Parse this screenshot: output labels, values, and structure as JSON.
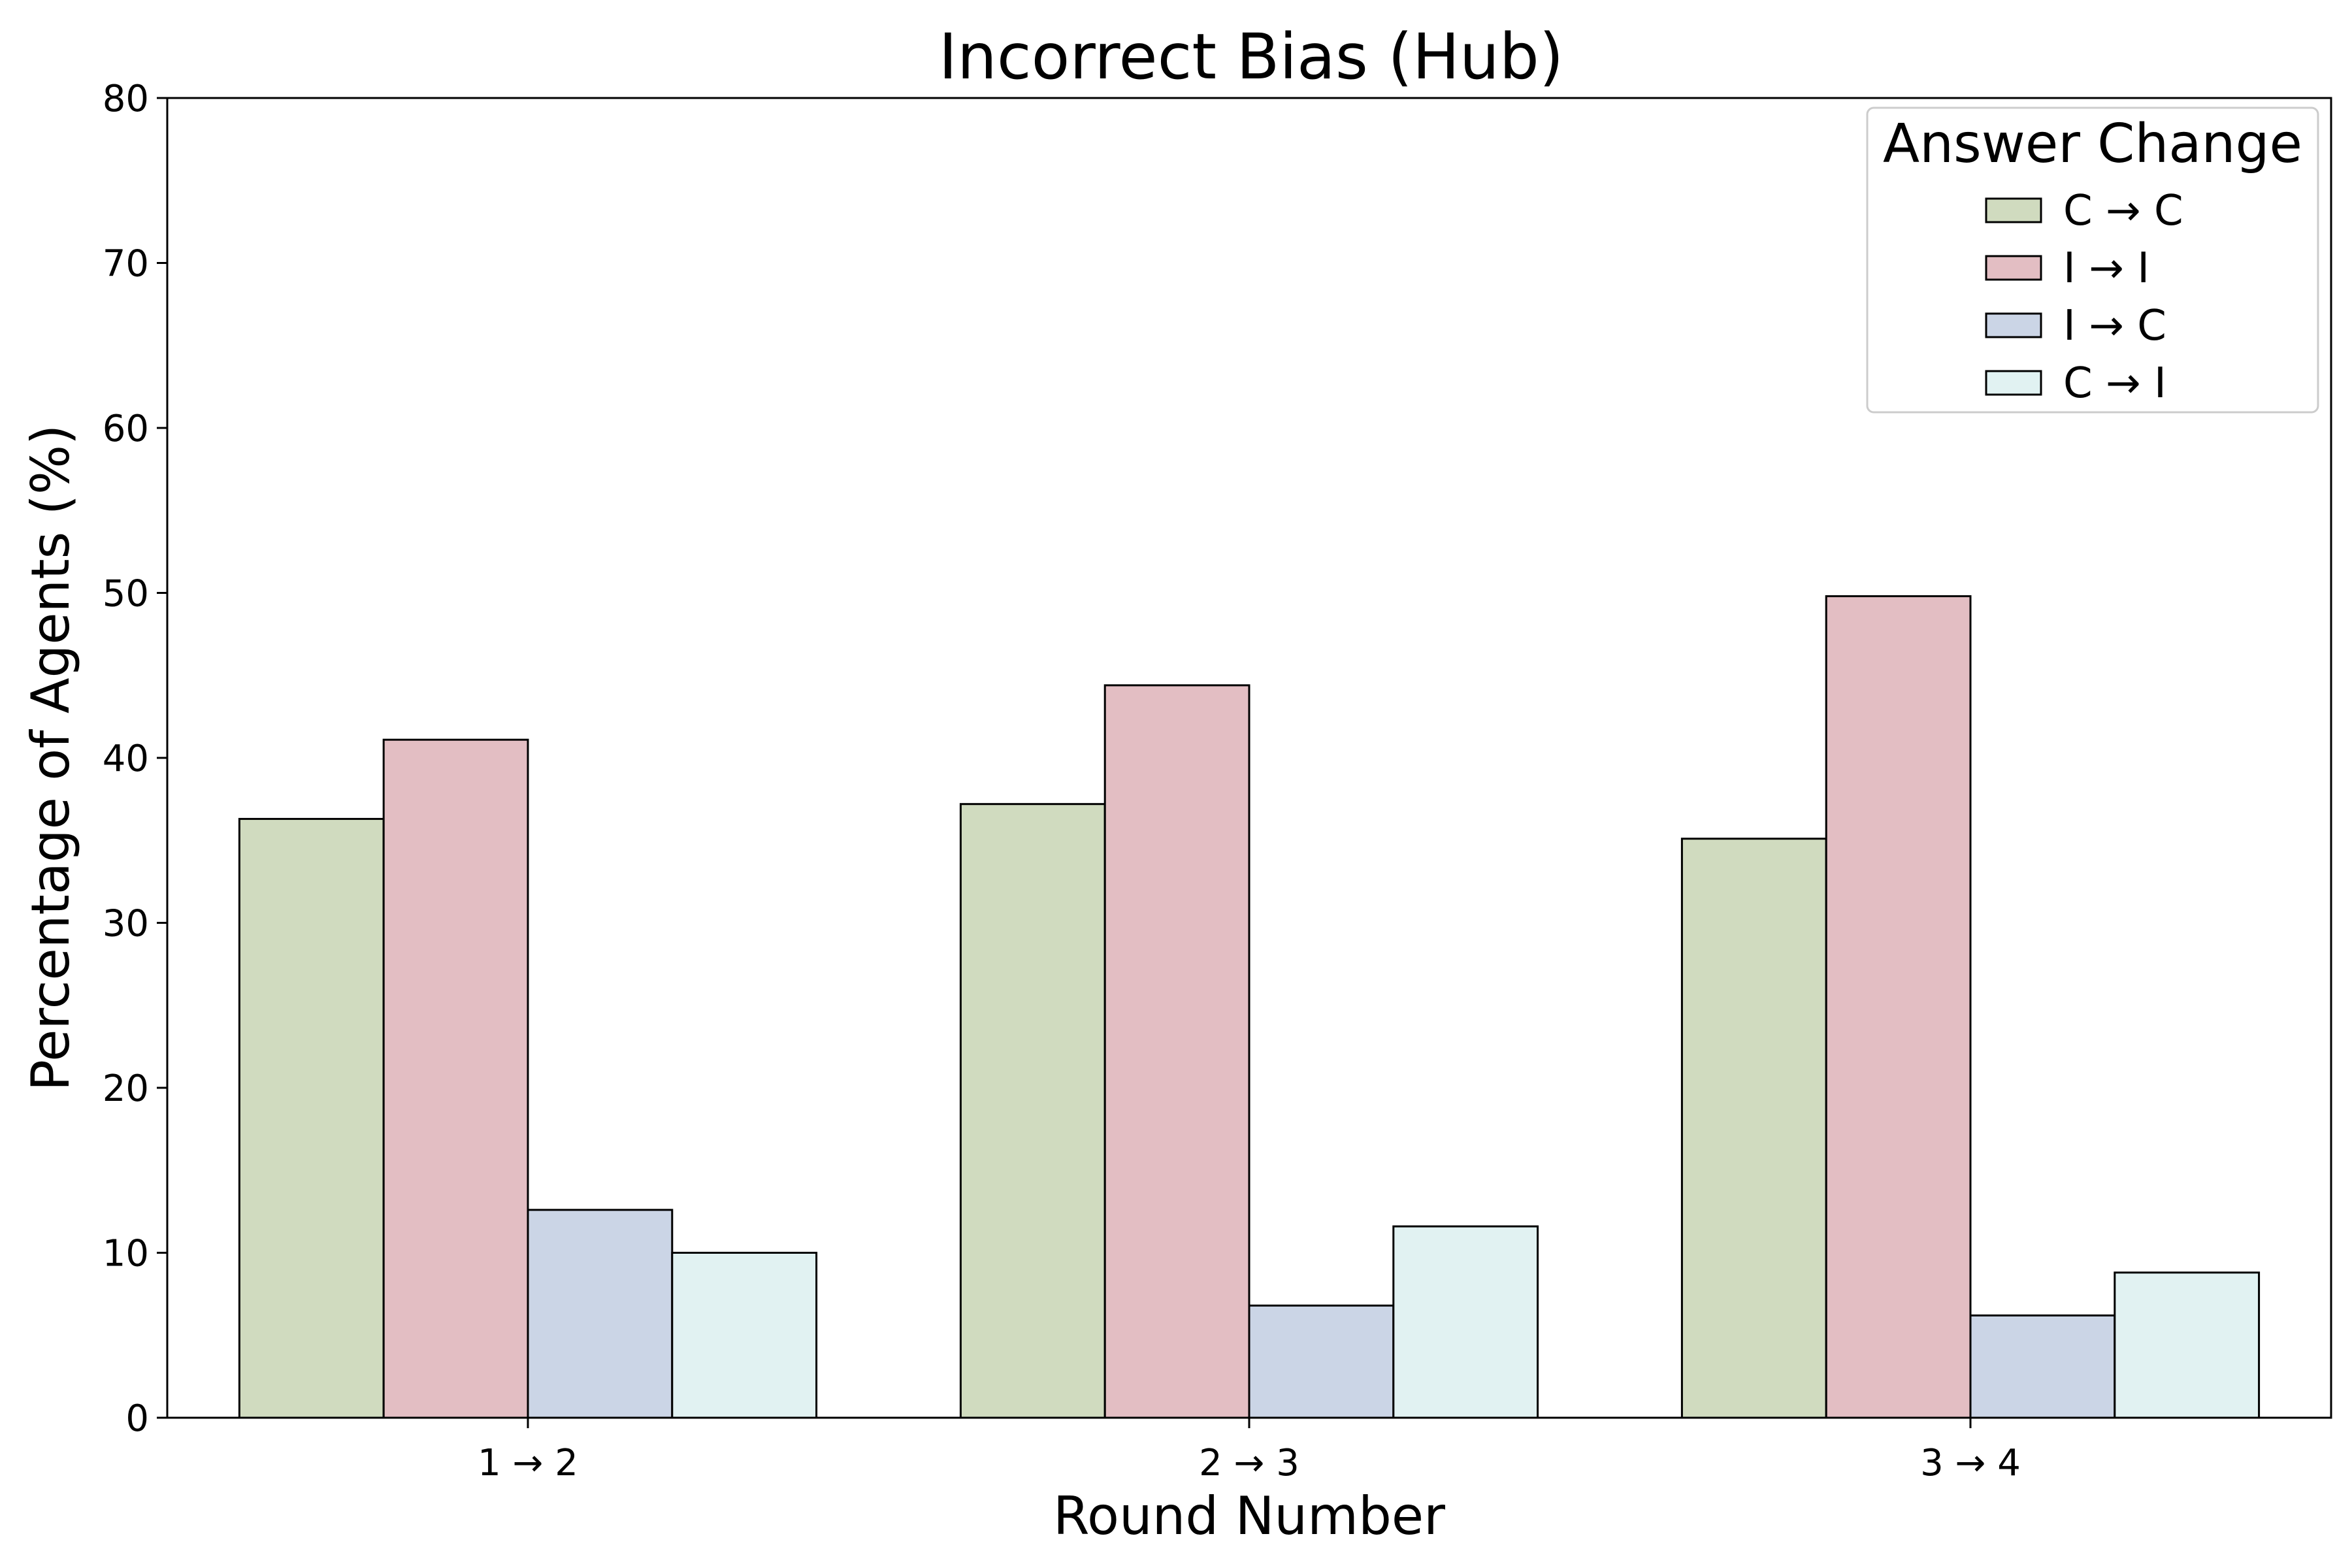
{
  "chart_data": {
    "type": "bar",
    "title": "Incorrect Bias (Hub)",
    "xlabel": "Round Number",
    "ylabel": "Percentage of Agents (%)",
    "ylim": [
      0,
      80
    ],
    "yticks": [
      0,
      10,
      20,
      30,
      40,
      50,
      60,
      70,
      80
    ],
    "categories": [
      "1 → 2",
      "2 → 3",
      "3 → 4"
    ],
    "legend": {
      "title": "Answer Change",
      "position": "top-right"
    },
    "grid": false,
    "series": [
      {
        "name": "C → C",
        "color": "#d0dbbf",
        "values": [
          36.3,
          37.2,
          35.1
        ]
      },
      {
        "name": "I → I",
        "color": "#e3bec3",
        "values": [
          41.1,
          44.4,
          49.8
        ]
      },
      {
        "name": "I → C",
        "color": "#cbd5e6",
        "values": [
          12.6,
          6.8,
          6.2
        ]
      },
      {
        "name": "C → I",
        "color": "#e1f2f2",
        "values": [
          10.0,
          11.6,
          8.8
        ]
      }
    ]
  }
}
